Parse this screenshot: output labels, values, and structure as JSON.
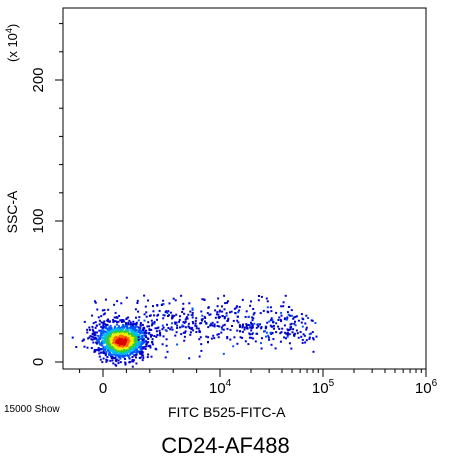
{
  "chart_data": {
    "type": "scatter",
    "style": "density-dot-plot",
    "title": "CD24-AF488",
    "xlabel": "FITC B525-FITC-A",
    "ylabel": "SSC-A",
    "y_multiplier": "(x 10",
    "y_multiplier_exp": "4",
    "x_scale": "biexponential",
    "event_count_label": "15000 Show",
    "x_ticks": [
      {
        "value": 0,
        "label": "0",
        "exp": ""
      },
      {
        "value": 10000,
        "label": "10",
        "exp": "4"
      },
      {
        "value": 100000,
        "label": "10",
        "exp": "5"
      },
      {
        "value": 1000000,
        "label": "10",
        "exp": "6"
      }
    ],
    "y_ticks": [
      {
        "value": 0,
        "label": "0"
      },
      {
        "value": 100,
        "label": "100"
      },
      {
        "value": 200,
        "label": "200"
      }
    ],
    "ylim": [
      0,
      250
    ],
    "grid": false,
    "clusters": [
      {
        "name": "",
        "x_center": 1500,
        "y_center": 15,
        "events": 11500
      },
      {
        "name": "",
        "x_center": 15000,
        "y_center": 25,
        "events": 3500
      }
    ],
    "density_colors": [
      "#0000cc",
      "#0055ff",
      "#00bbee",
      "#33cc33",
      "#eeee00",
      "#ff6600",
      "#dd0000"
    ]
  }
}
